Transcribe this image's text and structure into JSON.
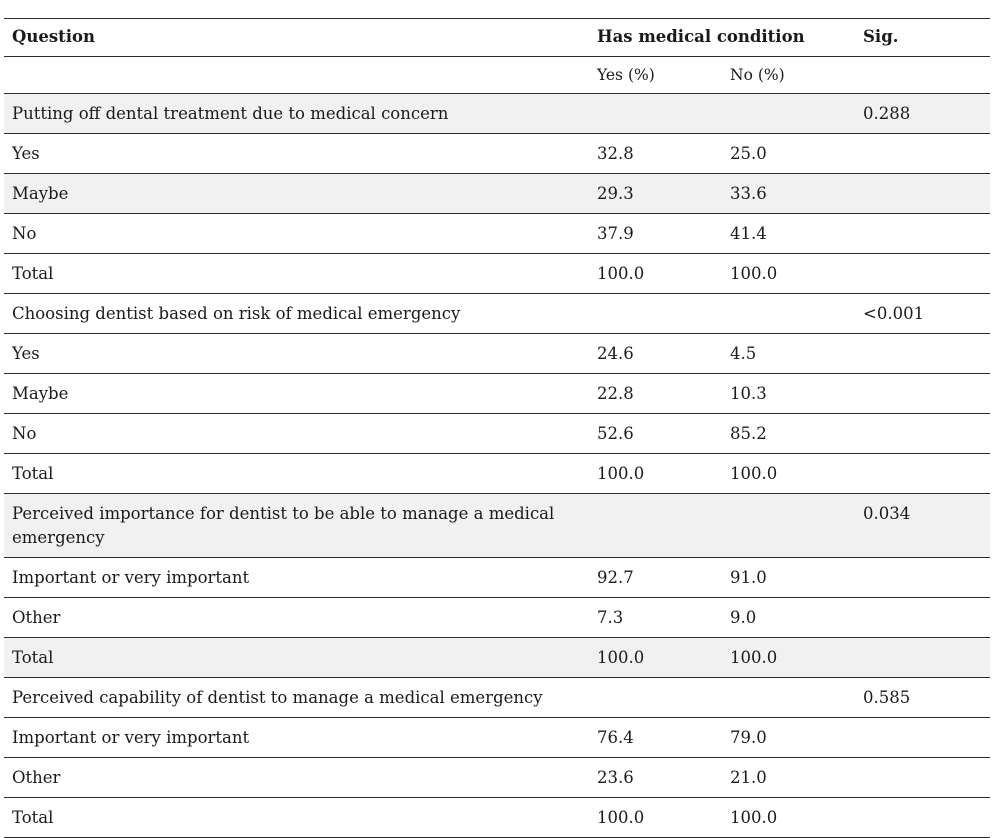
{
  "header": {
    "question": "Question",
    "has_medical_condition": "Has medical condition",
    "sig": "Sig.",
    "yes_pct": "Yes (%)",
    "no_pct": "No (%)"
  },
  "rows": [
    {
      "label": "Putting off dental treatment due to medical concern",
      "yes": "",
      "no": "",
      "sig": "0.288",
      "shade": true
    },
    {
      "label": "Yes",
      "yes": "32.8",
      "no": "25.0",
      "sig": "",
      "shade": false
    },
    {
      "label": "Maybe",
      "yes": "29.3",
      "no": "33.6",
      "sig": "",
      "shade": true
    },
    {
      "label": "No",
      "yes": "37.9",
      "no": "41.4",
      "sig": "",
      "shade": false
    },
    {
      "label": "Total",
      "yes": "100.0",
      "no": "100.0",
      "sig": "",
      "shade": false
    },
    {
      "label": "Choosing dentist based on risk of medical emergency",
      "yes": "",
      "no": "",
      "sig": "<0.001",
      "shade": false
    },
    {
      "label": "Yes",
      "yes": "24.6",
      "no": "4.5",
      "sig": "",
      "shade": false
    },
    {
      "label": "Maybe",
      "yes": "22.8",
      "no": "10.3",
      "sig": "",
      "shade": false
    },
    {
      "label": "No",
      "yes": "52.6",
      "no": "85.2",
      "sig": "",
      "shade": false
    },
    {
      "label": "Total",
      "yes": "100.0",
      "no": "100.0",
      "sig": "",
      "shade": false
    },
    {
      "label": "Perceived importance for dentist to be able to manage a medical emergency",
      "yes": "",
      "no": "",
      "sig": "0.034",
      "shade": true
    },
    {
      "label": "Important or very important",
      "yes": "92.7",
      "no": "91.0",
      "sig": "",
      "shade": false
    },
    {
      "label": "Other",
      "yes": "7.3",
      "no": "9.0",
      "sig": "",
      "shade": false
    },
    {
      "label": "Total",
      "yes": "100.0",
      "no": "100.0",
      "sig": "",
      "shade": true
    },
    {
      "label": "Perceived capability of dentist to manage a medical emergency",
      "yes": "",
      "no": "",
      "sig": "0.585",
      "shade": false
    },
    {
      "label": "Important or very important",
      "yes": "76.4",
      "no": "79.0",
      "sig": "",
      "shade": false
    },
    {
      "label": "Other",
      "yes": "23.6",
      "no": "21.0",
      "sig": "",
      "shade": false
    },
    {
      "label": "Total",
      "yes": "100.0",
      "no": "100.0",
      "sig": "",
      "shade": false
    }
  ],
  "colors": {
    "rule": "#2b2b2b",
    "shade": "#f1f1f1",
    "text": "#1a1a1a"
  }
}
